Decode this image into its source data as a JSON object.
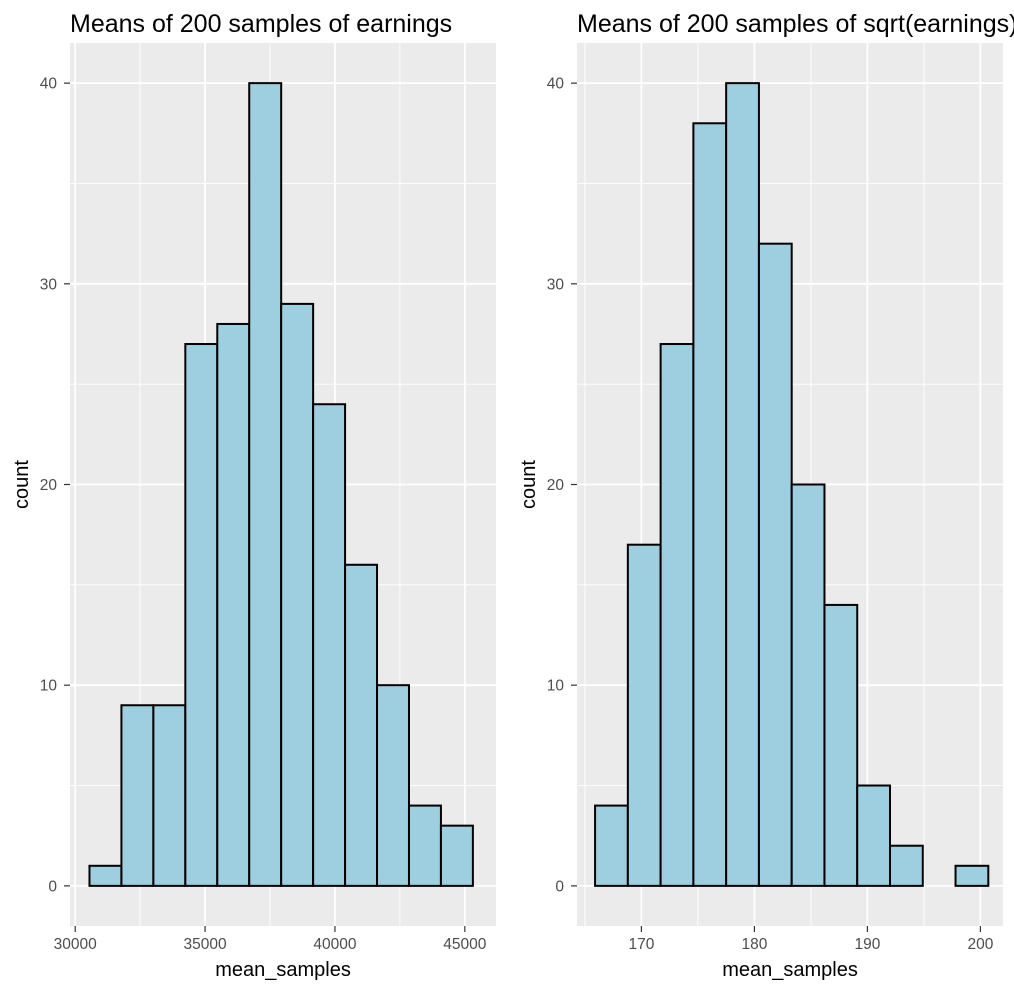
{
  "colors": {
    "panel_background": "#ebebeb",
    "grid": "#ffffff",
    "bar_fill": "#9ecfe0",
    "bar_outline": "#000000",
    "tick_label": "#4d4d4d",
    "text": "#000000"
  },
  "chart_data": [
    {
      "type": "bar",
      "subtype": "histogram",
      "title": "Means of 200 samples of earnings",
      "xlabel": "mean_samples",
      "ylabel": "count",
      "xlim": [
        29800,
        46200
      ],
      "ylim": [
        -2,
        42
      ],
      "x_ticks": [
        30000,
        35000,
        40000,
        45000
      ],
      "x_tick_labels": [
        "30000",
        "35000",
        "40000",
        "45000"
      ],
      "y_ticks": [
        0,
        10,
        20,
        30,
        40
      ],
      "y_tick_labels": [
        "0",
        "10",
        "20",
        "30",
        "40"
      ],
      "grid": true,
      "bins": [
        {
          "x0": 30550,
          "x1": 31780,
          "count": 1
        },
        {
          "x0": 31780,
          "x1": 33010,
          "count": 9
        },
        {
          "x0": 33010,
          "x1": 34240,
          "count": 9
        },
        {
          "x0": 34240,
          "x1": 35470,
          "count": 27
        },
        {
          "x0": 35470,
          "x1": 36700,
          "count": 28
        },
        {
          "x0": 36700,
          "x1": 37930,
          "count": 40
        },
        {
          "x0": 37930,
          "x1": 39160,
          "count": 29
        },
        {
          "x0": 39160,
          "x1": 40390,
          "count": 24
        },
        {
          "x0": 40390,
          "x1": 41620,
          "count": 16
        },
        {
          "x0": 41620,
          "x1": 42850,
          "count": 10
        },
        {
          "x0": 42850,
          "x1": 44080,
          "count": 4
        },
        {
          "x0": 44080,
          "x1": 45310,
          "count": 3
        }
      ]
    },
    {
      "type": "bar",
      "subtype": "histogram",
      "title": "Means of 200 samples of sqrt(earnings)",
      "xlabel": "mean_samples",
      "ylabel": "count",
      "xlim": [
        164.3,
        202.0
      ],
      "ylim": [
        -2,
        42
      ],
      "x_ticks": [
        170,
        180,
        190,
        200
      ],
      "x_tick_labels": [
        "170",
        "180",
        "190",
        "200"
      ],
      "y_ticks": [
        0,
        10,
        20,
        30,
        40
      ],
      "y_tick_labels": [
        "0",
        "10",
        "20",
        "30",
        "40"
      ],
      "grid": true,
      "bins": [
        {
          "x0": 165.9,
          "x1": 168.8,
          "count": 4
        },
        {
          "x0": 168.8,
          "x1": 171.7,
          "count": 17
        },
        {
          "x0": 171.7,
          "x1": 174.6,
          "count": 27
        },
        {
          "x0": 174.6,
          "x1": 177.5,
          "count": 38
        },
        {
          "x0": 177.5,
          "x1": 180.4,
          "count": 40
        },
        {
          "x0": 180.4,
          "x1": 183.3,
          "count": 32
        },
        {
          "x0": 183.3,
          "x1": 186.2,
          "count": 20
        },
        {
          "x0": 186.2,
          "x1": 189.1,
          "count": 14
        },
        {
          "x0": 189.1,
          "x1": 192.0,
          "count": 5
        },
        {
          "x0": 192.0,
          "x1": 194.9,
          "count": 2
        },
        {
          "x0": 194.9,
          "x1": 197.8,
          "count": 0
        },
        {
          "x0": 197.8,
          "x1": 200.7,
          "count": 1
        }
      ]
    }
  ]
}
